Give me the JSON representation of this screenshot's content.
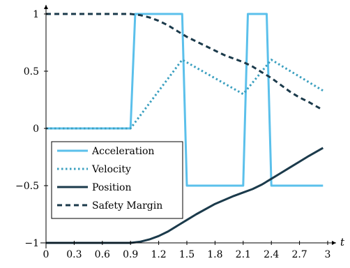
{
  "chart_data": {
    "type": "line",
    "title": "",
    "xlabel": "t",
    "ylabel": "",
    "xlim": [
      0,
      3
    ],
    "ylim": [
      -1,
      1
    ],
    "x_ticks": [
      0,
      0.3,
      0.6,
      0.9,
      1.2,
      1.5,
      1.8,
      2.1,
      2.4,
      2.7,
      3
    ],
    "x_tick_labels": [
      "0",
      "0.3",
      "0.6",
      "0.9",
      "1.2",
      "1.5",
      "1.8",
      "2.1",
      "2.4",
      "2.7",
      "3"
    ],
    "y_ticks": [
      -1,
      -0.5,
      0,
      0.5,
      1
    ],
    "y_tick_labels": [
      "−1",
      "−0.5",
      "0",
      "0.5",
      "1"
    ],
    "grid": false,
    "legend_position": "bottom-left",
    "series": [
      {
        "name": "Acceleration",
        "style": "solid",
        "color": "#5bc0eb",
        "x": [
          0,
          0.9,
          0.95,
          1.45,
          1.5,
          2.1,
          2.15,
          2.35,
          2.4,
          2.95
        ],
        "y": [
          0,
          0,
          1,
          1,
          -0.5,
          -0.5,
          1,
          1,
          -0.5,
          -0.5
        ]
      },
      {
        "name": "Velocity",
        "style": "dotted",
        "color": "#3a9fbf",
        "x": [
          0,
          0.9,
          1.45,
          2.1,
          2.4,
          2.95
        ],
        "y": [
          0,
          0,
          0.6,
          0.3,
          0.6,
          0.33
        ]
      },
      {
        "name": "Position",
        "style": "solid",
        "color": "#1b3a4b",
        "x": [
          0,
          0.9,
          1.0,
          1.1,
          1.2,
          1.3,
          1.4,
          1.5,
          1.6,
          1.8,
          2.0,
          2.1,
          2.2,
          2.3,
          2.4,
          2.5,
          2.6,
          2.7,
          2.8,
          2.95
        ],
        "y": [
          -1,
          -1,
          -0.99,
          -0.97,
          -0.94,
          -0.9,
          -0.85,
          -0.8,
          -0.75,
          -0.66,
          -0.59,
          -0.56,
          -0.53,
          -0.49,
          -0.44,
          -0.39,
          -0.34,
          -0.29,
          -0.24,
          -0.17
        ]
      },
      {
        "name": "Safety Margin",
        "style": "dashed",
        "color": "#1b3a4b",
        "x": [
          0,
          0.9,
          1.0,
          1.1,
          1.2,
          1.3,
          1.4,
          1.5,
          1.6,
          1.7,
          1.8,
          1.9,
          2.0,
          2.1,
          2.2,
          2.3,
          2.4,
          2.5,
          2.6,
          2.7,
          2.8,
          2.95
        ],
        "y": [
          1,
          1,
          0.99,
          0.97,
          0.94,
          0.9,
          0.85,
          0.8,
          0.76,
          0.72,
          0.68,
          0.64,
          0.61,
          0.58,
          0.54,
          0.49,
          0.44,
          0.38,
          0.32,
          0.27,
          0.23,
          0.16
        ]
      }
    ]
  }
}
